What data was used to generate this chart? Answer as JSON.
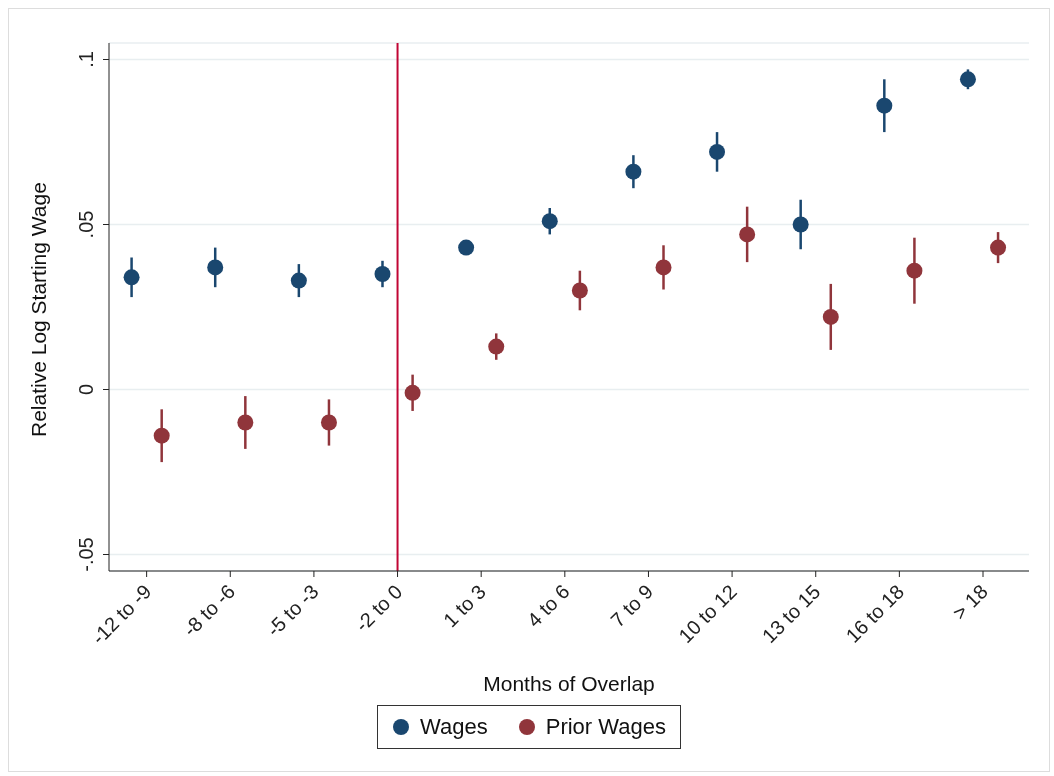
{
  "chart_data": {
    "type": "scatter",
    "xlabel": "Months of Overlap",
    "ylabel": "Relative Log Starting Wage",
    "categories": [
      "-12 to -9",
      "-8 to -6",
      "-5 to -3",
      "-2 to 0",
      "1 to 3",
      "4 to 6",
      "7 to 9",
      "10 to 12",
      "13 to 15",
      "16 to 18",
      "> 18"
    ],
    "series": [
      {
        "name": "Wages",
        "color": "#1a476f",
        "values": [
          0.034,
          0.037,
          0.033,
          0.035,
          0.043,
          0.051,
          0.066,
          0.072,
          0.05,
          0.086,
          0.094
        ],
        "errors": [
          0.006,
          0.006,
          0.005,
          0.004,
          0.002,
          0.004,
          0.005,
          0.006,
          0.0075,
          0.008,
          0.003
        ]
      },
      {
        "name": "Prior Wages",
        "color": "#90353b",
        "values": [
          -0.014,
          -0.01,
          -0.01,
          -0.001,
          0.013,
          0.03,
          0.037,
          0.047,
          0.022,
          0.036,
          0.043
        ],
        "errors": [
          0.008,
          0.008,
          0.007,
          0.0055,
          0.004,
          0.006,
          0.0067,
          0.0084,
          0.01,
          0.01,
          0.0047
        ]
      }
    ],
    "ylim": [
      -0.055,
      0.105
    ],
    "yticks": [
      {
        "value": -0.05,
        "label": "-.05"
      },
      {
        "value": 0,
        "label": "0"
      },
      {
        "value": 0.05,
        "label": ".05"
      },
      {
        "value": 0.1,
        "label": ".1"
      }
    ],
    "ref_lines": [
      {
        "axis": "x",
        "value": "-2 to 0",
        "color": "#c10534"
      }
    ],
    "grid": "y",
    "legend": "bottom",
    "marker": "circle"
  }
}
